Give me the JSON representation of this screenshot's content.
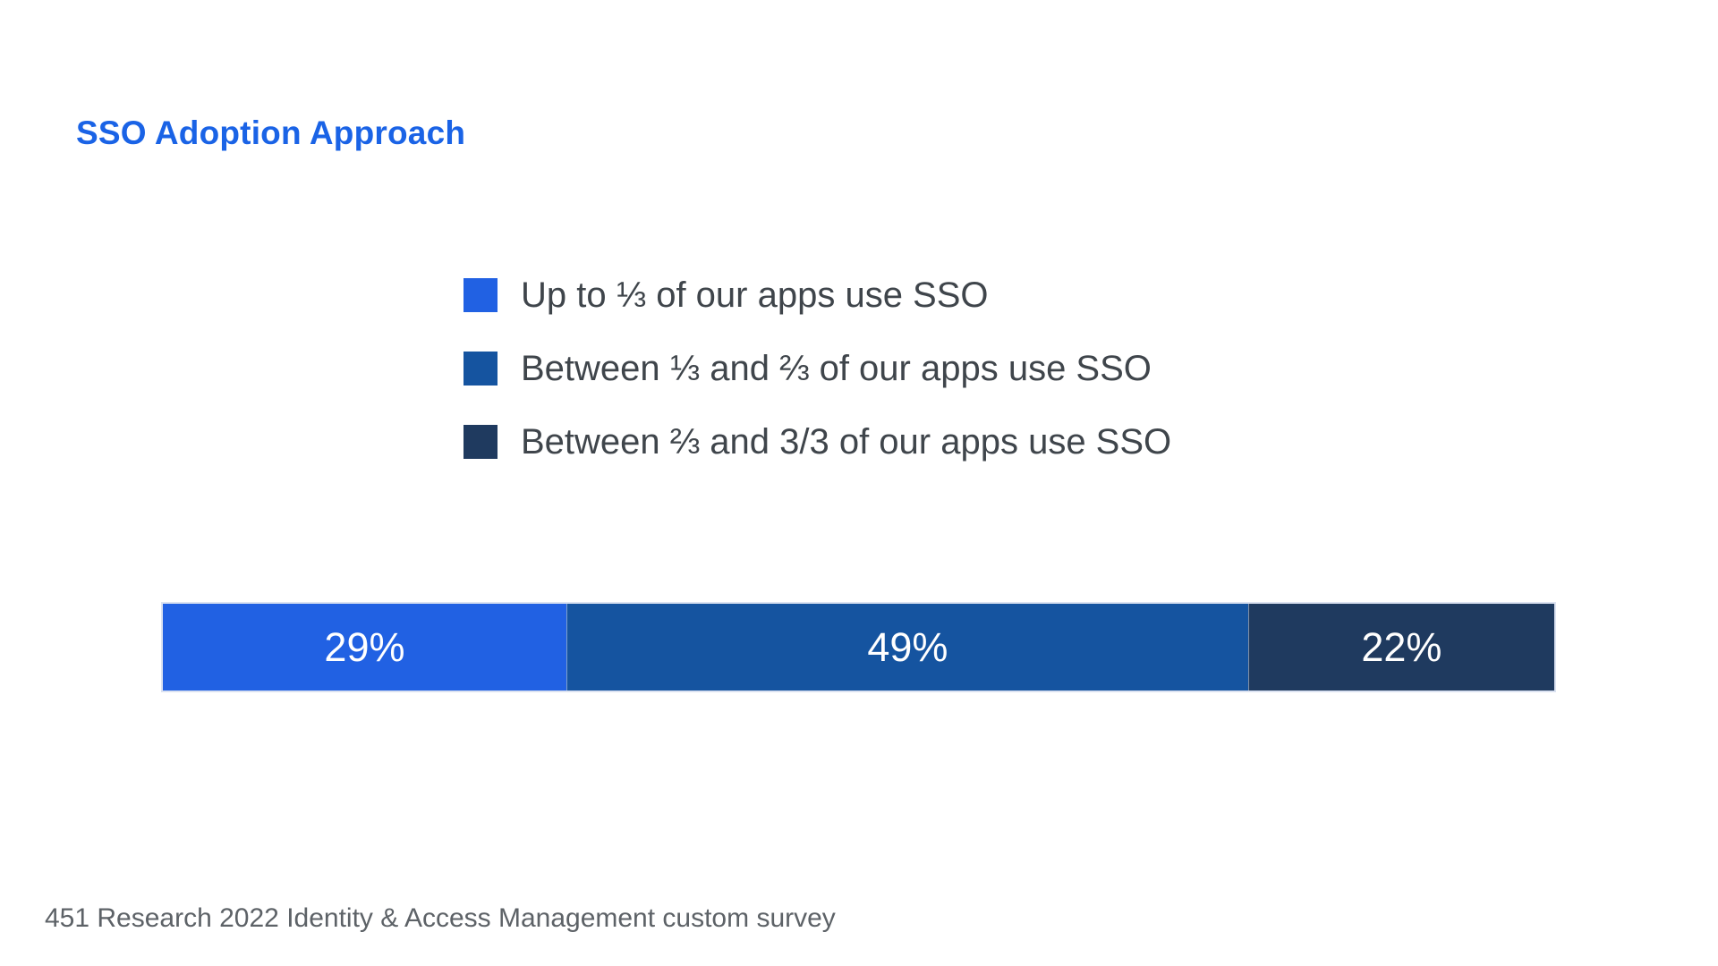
{
  "page": {
    "title": "SSO Adoption Approach",
    "source_note": "451 Research 2022 Identity & Access Management custom survey"
  },
  "colors": {
    "title_text": "#1A63E6",
    "legend_text": "#3F454B",
    "footer_text": "#5D6267",
    "bar_border": "#DBE2F1",
    "bar_label_text": "#FFFFFF",
    "segment_1": "#2161E3",
    "segment_2": "#1554A0",
    "segment_3": "#1F3A5F"
  },
  "chart_data": {
    "type": "bar",
    "variant": "horizontal-stacked",
    "stacked": true,
    "orientation": "horizontal",
    "title": "SSO Adoption Approach",
    "unit": "%",
    "total": 100,
    "xlim": [
      0,
      100
    ],
    "grid": false,
    "legend_position": "above-bar-left",
    "series": [
      {
        "name": "Up to ⅓ of our apps use SSO",
        "value": 29,
        "label": "29%",
        "color": "#2161E3"
      },
      {
        "name": "Between ⅓ and ⅔ of our apps use SSO",
        "value": 49,
        "label": "49%",
        "color": "#1554A0"
      },
      {
        "name": "Between ⅔ and 3/3 of our apps use SSO",
        "value": 22,
        "label": "22%",
        "color": "#1F3A5F"
      }
    ],
    "source": "451 Research 2022 Identity & Access Management custom survey"
  }
}
